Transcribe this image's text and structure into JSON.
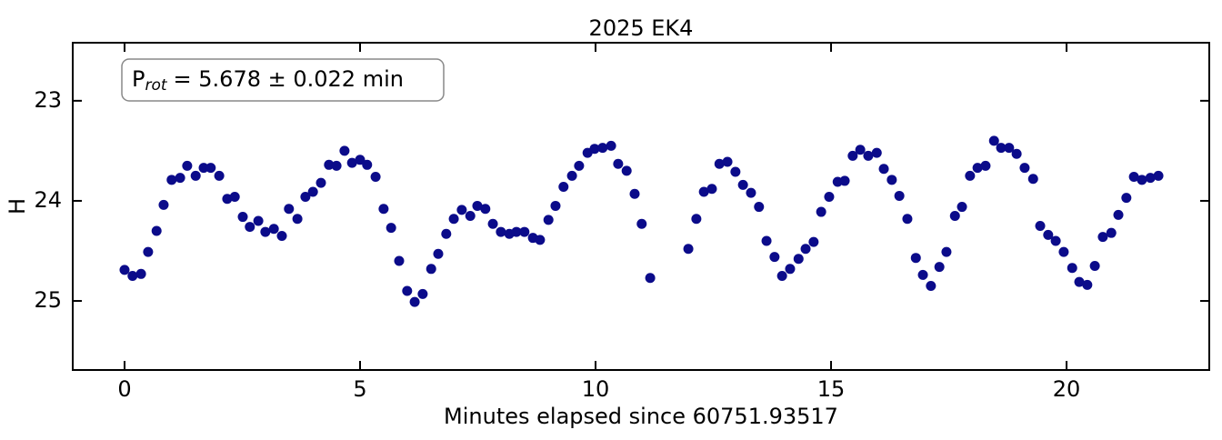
{
  "chart_data": {
    "type": "scatter",
    "title": "2025 EK4",
    "xlabel": "Minutes elapsed since 60751.93517",
    "ylabel": "H",
    "annotation_prefix": "P",
    "annotation_subscript": "rot",
    "annotation_text": "= 5.678 ± 0.022 min",
    "xlim": [
      -1.1,
      23.03
    ],
    "ylim": [
      25.69,
      22.42
    ],
    "xticks": [
      0,
      5,
      10,
      15,
      20
    ],
    "yticks": [
      23,
      24,
      25
    ],
    "series": [
      {
        "color": "#0b0b8a",
        "x": [
          0,
          0.17,
          0.35,
          0.5,
          0.68,
          0.83,
          1.0,
          1.18,
          1.33,
          1.51,
          1.68,
          1.83,
          2.01,
          2.18,
          2.34,
          2.51,
          2.66,
          2.84,
          2.99,
          3.17,
          3.34,
          3.49,
          3.67,
          3.84,
          4.0,
          4.17,
          4.34,
          4.5,
          4.67,
          4.83,
          5.0,
          5.15,
          5.33,
          5.5,
          5.66,
          5.83,
          6.0,
          6.16,
          6.33,
          6.51,
          6.66,
          6.83,
          6.99,
          7.16,
          7.34,
          7.49,
          7.66,
          7.82,
          7.99,
          8.17,
          8.32,
          8.49,
          8.67,
          8.82,
          9.0,
          9.15,
          9.32,
          9.5,
          9.65,
          9.83,
          9.98,
          10.15,
          10.33,
          10.48,
          10.66,
          10.83,
          10.98,
          11.16,
          11.97,
          12.14,
          12.3,
          12.47,
          12.63,
          12.8,
          12.97,
          13.13,
          13.3,
          13.47,
          13.63,
          13.8,
          13.96,
          14.13,
          14.31,
          14.46,
          14.63,
          14.79,
          14.96,
          15.14,
          15.29,
          15.46,
          15.62,
          15.79,
          15.97,
          16.12,
          16.29,
          16.45,
          16.62,
          16.8,
          16.95,
          17.12,
          17.3,
          17.45,
          17.63,
          17.78,
          17.95,
          18.11,
          18.28,
          18.46,
          18.61,
          18.78,
          18.94,
          19.11,
          19.29,
          19.44,
          19.61,
          19.77,
          19.94,
          20.12,
          20.27,
          20.44,
          20.6,
          20.77,
          20.95,
          21.1,
          21.27,
          21.43,
          21.6,
          21.78,
          21.95
        ],
        "values": [
          24.69,
          24.75,
          24.73,
          24.51,
          24.3,
          24.04,
          23.79,
          23.77,
          23.65,
          23.75,
          23.67,
          23.67,
          23.75,
          23.98,
          23.96,
          24.16,
          24.26,
          24.2,
          24.31,
          24.28,
          24.35,
          24.08,
          24.18,
          23.96,
          23.91,
          23.82,
          23.64,
          23.65,
          23.5,
          23.62,
          23.59,
          23.64,
          23.76,
          24.08,
          24.27,
          24.6,
          24.9,
          25.01,
          24.93,
          24.68,
          24.53,
          24.33,
          24.18,
          24.09,
          24.15,
          24.05,
          24.08,
          24.23,
          24.31,
          24.33,
          24.31,
          24.31,
          24.37,
          24.39,
          24.19,
          24.05,
          23.86,
          23.75,
          23.65,
          23.52,
          23.48,
          23.47,
          23.45,
          23.63,
          23.7,
          23.93,
          24.23,
          24.77,
          24.48,
          24.18,
          23.91,
          23.88,
          23.63,
          23.61,
          23.71,
          23.84,
          23.92,
          24.06,
          24.4,
          24.56,
          24.75,
          24.68,
          24.58,
          24.48,
          24.41,
          24.11,
          23.96,
          23.81,
          23.8,
          23.55,
          23.49,
          23.55,
          23.52,
          23.68,
          23.79,
          23.95,
          24.18,
          24.57,
          24.74,
          24.85,
          24.66,
          24.51,
          24.15,
          24.06,
          23.75,
          23.67,
          23.65,
          23.4,
          23.47,
          23.47,
          23.53,
          23.67,
          23.78,
          24.25,
          24.34,
          24.4,
          24.51,
          24.67,
          24.81,
          24.84,
          24.65,
          24.36,
          24.32,
          24.14,
          23.97,
          23.76,
          23.79,
          23.77,
          23.75
        ]
      }
    ]
  }
}
